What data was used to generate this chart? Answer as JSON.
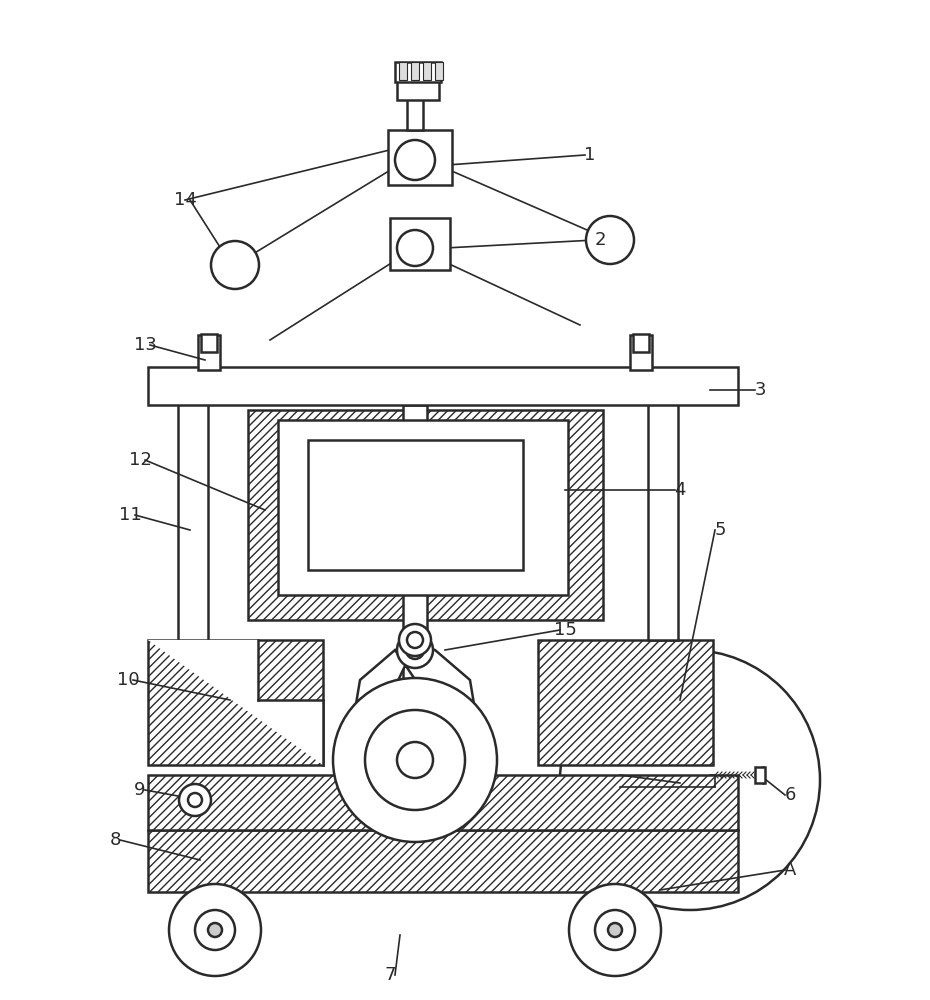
{
  "bg_color": "#ffffff",
  "lc": "#2a2a2a",
  "lw_main": 1.8,
  "lw_thin": 1.2
}
